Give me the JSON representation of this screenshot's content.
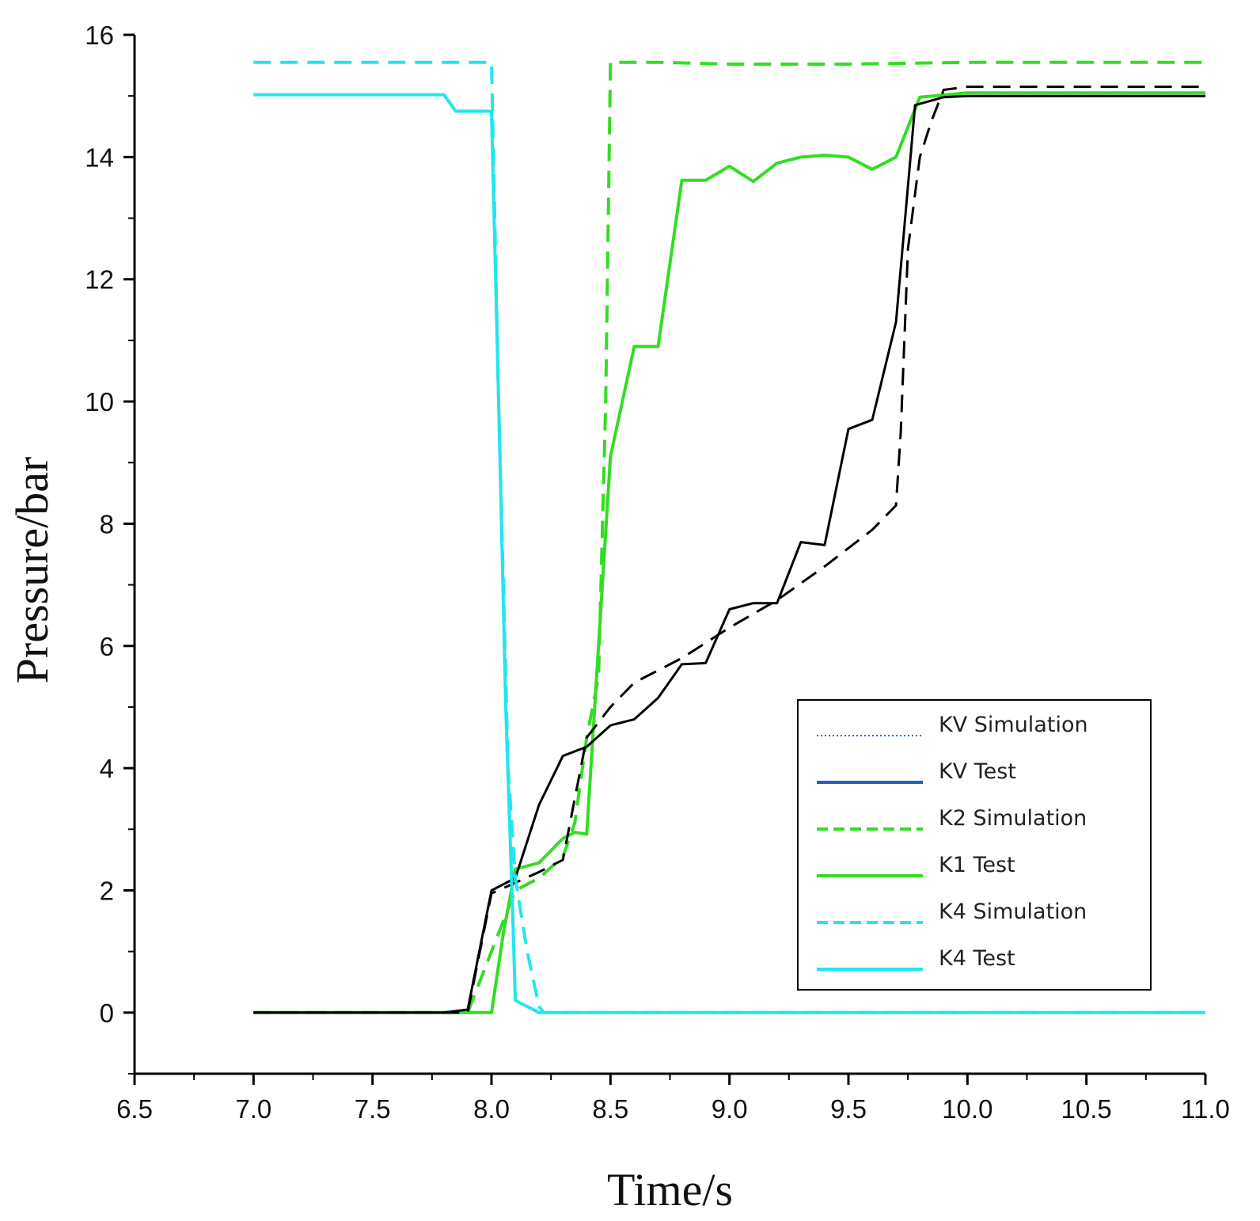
{
  "chart_data": {
    "type": "line",
    "title": "",
    "xlabel": "Time/s",
    "ylabel": "Pressure/bar",
    "xlim": [
      6.5,
      11.0
    ],
    "ylim": [
      -1,
      16
    ],
    "xticks": [
      6.5,
      7.0,
      7.5,
      8.0,
      8.5,
      9.0,
      9.5,
      10.0,
      10.5,
      11.0
    ],
    "xtick_labels": [
      "6.5",
      "7.0",
      "7.5",
      "8.0",
      "8.5",
      "9.0",
      "9.5",
      "10.0",
      "10.5",
      "11.0"
    ],
    "yticks": [
      0,
      2,
      4,
      6,
      8,
      10,
      12,
      14,
      16
    ],
    "ytick_labels": [
      "0",
      "2",
      "4",
      "6",
      "8",
      "10",
      "12",
      "14",
      "16"
    ],
    "grid": false,
    "legend_position": "lower-right",
    "series": [
      {
        "name": "KV Test",
        "legend_label": "KV Test",
        "legend_swatch_color": "#1f5fbf",
        "color": "#000000",
        "style": "solid",
        "points": [
          [
            7.0,
            0
          ],
          [
            7.8,
            0
          ],
          [
            7.9,
            0.05
          ],
          [
            8.0,
            2.0
          ],
          [
            8.1,
            2.2
          ],
          [
            8.2,
            3.4
          ],
          [
            8.3,
            4.2
          ],
          [
            8.4,
            4.35
          ],
          [
            8.5,
            4.7
          ],
          [
            8.6,
            4.8
          ],
          [
            8.7,
            5.15
          ],
          [
            8.8,
            5.7
          ],
          [
            8.9,
            5.72
          ],
          [
            9.0,
            6.6
          ],
          [
            9.1,
            6.7
          ],
          [
            9.2,
            6.7
          ],
          [
            9.3,
            7.7
          ],
          [
            9.4,
            7.65
          ],
          [
            9.5,
            9.55
          ],
          [
            9.6,
            9.7
          ],
          [
            9.7,
            11.3
          ],
          [
            9.78,
            14.85
          ],
          [
            9.9,
            14.98
          ],
          [
            10.0,
            15.0
          ],
          [
            11.0,
            15.0
          ]
        ]
      },
      {
        "name": "KV Simulation",
        "legend_label": "KV Simulation",
        "legend_swatch_color": "#1f5fbf",
        "color": "#000000",
        "style": "dashed",
        "points": [
          [
            7.0,
            0
          ],
          [
            7.9,
            0
          ],
          [
            8.0,
            1.95
          ],
          [
            8.2,
            2.3
          ],
          [
            8.3,
            2.5
          ],
          [
            8.35,
            3.5
          ],
          [
            8.4,
            4.5
          ],
          [
            8.5,
            5.0
          ],
          [
            8.6,
            5.4
          ],
          [
            8.8,
            5.8
          ],
          [
            9.0,
            6.3
          ],
          [
            9.2,
            6.75
          ],
          [
            9.4,
            7.3
          ],
          [
            9.6,
            7.9
          ],
          [
            9.7,
            8.3
          ],
          [
            9.72,
            9.5
          ],
          [
            9.75,
            12.5
          ],
          [
            9.8,
            14.0
          ],
          [
            9.85,
            14.6
          ],
          [
            9.9,
            15.1
          ],
          [
            10.0,
            15.15
          ],
          [
            11.0,
            15.15
          ]
        ]
      },
      {
        "name": "K2 Simulation",
        "legend_label": "K2 Simulation",
        "legend_swatch_color": "#33dd22",
        "color": "#33dd22",
        "style": "dashed",
        "points": [
          [
            7.0,
            0
          ],
          [
            7.9,
            0
          ],
          [
            8.05,
            1.5
          ],
          [
            8.1,
            2.0
          ],
          [
            8.2,
            2.2
          ],
          [
            8.3,
            2.55
          ],
          [
            8.35,
            3.1
          ],
          [
            8.4,
            4.5
          ],
          [
            8.45,
            5.5
          ],
          [
            8.48,
            10.0
          ],
          [
            8.5,
            15.55
          ],
          [
            8.7,
            15.55
          ],
          [
            9.0,
            15.52
          ],
          [
            9.5,
            15.52
          ],
          [
            10.0,
            15.55
          ],
          [
            11.0,
            15.55
          ]
        ]
      },
      {
        "name": "K1 Test",
        "legend_label": "K1 Test",
        "legend_swatch_color": "#33dd22",
        "color": "#33dd22",
        "style": "solid",
        "points": [
          [
            7.0,
            0
          ],
          [
            8.0,
            0
          ],
          [
            8.05,
            1.3
          ],
          [
            8.1,
            2.35
          ],
          [
            8.2,
            2.45
          ],
          [
            8.3,
            2.85
          ],
          [
            8.35,
            2.95
          ],
          [
            8.4,
            2.92
          ],
          [
            8.5,
            9.1
          ],
          [
            8.6,
            10.9
          ],
          [
            8.7,
            10.9
          ],
          [
            8.8,
            13.62
          ],
          [
            8.9,
            13.62
          ],
          [
            9.0,
            13.85
          ],
          [
            9.1,
            13.6
          ],
          [
            9.2,
            13.9
          ],
          [
            9.3,
            14.0
          ],
          [
            9.4,
            14.03
          ],
          [
            9.5,
            14.0
          ],
          [
            9.6,
            13.8
          ],
          [
            9.7,
            14.0
          ],
          [
            9.8,
            14.98
          ],
          [
            10.0,
            15.05
          ],
          [
            11.0,
            15.05
          ]
        ]
      },
      {
        "name": "K4 Simulation",
        "legend_label": "K4 Simulation",
        "legend_swatch_color": "#22e5f0",
        "color": "#22e5f0",
        "style": "dashed",
        "points": [
          [
            7.0,
            15.55
          ],
          [
            8.0,
            15.55
          ],
          [
            8.03,
            10.0
          ],
          [
            8.07,
            4.0
          ],
          [
            8.1,
            2.2
          ],
          [
            8.15,
            1.0
          ],
          [
            8.2,
            0.1
          ],
          [
            8.22,
            0
          ],
          [
            11.0,
            0
          ]
        ]
      },
      {
        "name": "K4 Test",
        "legend_label": "K4 Test",
        "legend_swatch_color": "#22e5f0",
        "color": "#22e5f0",
        "style": "solid",
        "points": [
          [
            7.0,
            15.02
          ],
          [
            7.8,
            15.02
          ],
          [
            7.85,
            14.75
          ],
          [
            8.0,
            14.75
          ],
          [
            8.03,
            10.0
          ],
          [
            8.06,
            5.0
          ],
          [
            8.09,
            1.5
          ],
          [
            8.1,
            0.2
          ],
          [
            8.2,
            0
          ],
          [
            11.0,
            0
          ]
        ]
      }
    ],
    "legend": [
      {
        "label": "KV Simulation",
        "color": "#1f6fd0",
        "style": "dotted"
      },
      {
        "label": "KV Test",
        "color": "#1f5fbf",
        "style": "solid"
      },
      {
        "label": "K2 Simulation",
        "color": "#33dd22",
        "style": "dashed"
      },
      {
        "label": "K1 Test",
        "color": "#33dd22",
        "style": "solid"
      },
      {
        "label": "K4 Simulation",
        "color": "#22e5f0",
        "style": "dashed"
      },
      {
        "label": "K4 Test",
        "color": "#22e5f0",
        "style": "solid"
      }
    ]
  }
}
